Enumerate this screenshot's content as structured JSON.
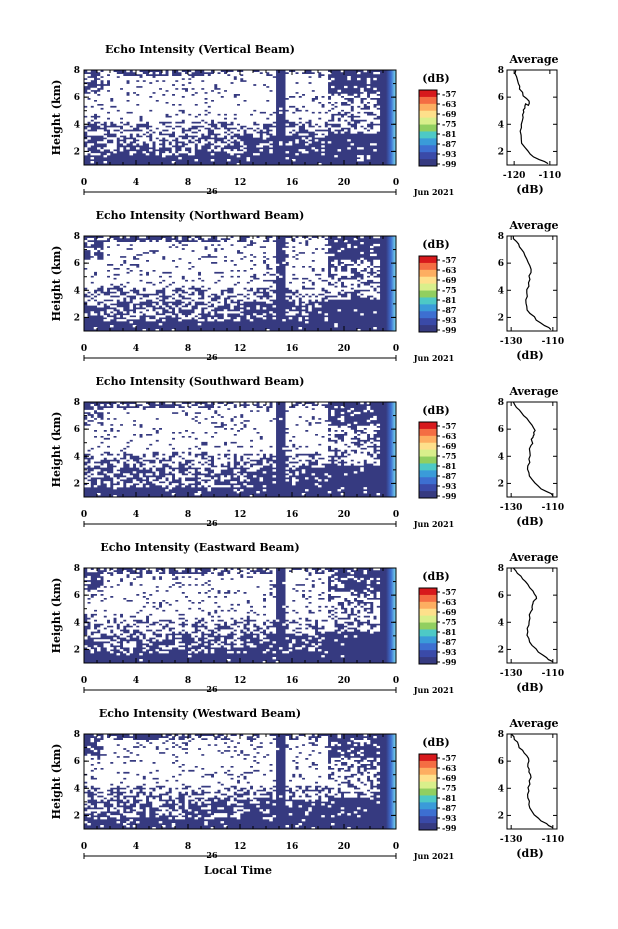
{
  "chart_data": [
    {
      "type": "heatmap",
      "title": "Echo Intensity (Vertical Beam)",
      "ylabel": "Height (km)",
      "xlabel": "",
      "x_ticks": [
        "0",
        "4",
        "8",
        "12",
        "16",
        "20",
        "0"
      ],
      "y_ticks": [
        "2",
        "4",
        "6",
        "8"
      ],
      "date_label": "26",
      "month_label": "Jun 2021",
      "xlim": [
        0,
        24
      ],
      "ylim": [
        1,
        8
      ],
      "colorbar": {
        "unit": "(dB)",
        "ticks": [
          "-57",
          "-63",
          "-69",
          "-75",
          "-81",
          "-87",
          "-93",
          "-99"
        ]
      },
      "profile": {
        "title": "Average",
        "xlabel": "(dB)",
        "x_ticks": [
          "-120",
          "-110"
        ],
        "xlim": [
          -122,
          -108
        ],
        "y_ticks": [
          "2",
          "4",
          "6",
          "8"
        ],
        "ylim": [
          1,
          8
        ],
        "x": [
          -110.5,
          -113,
          -115.5,
          -117,
          -118,
          -118.3,
          -118,
          -117.5,
          -117.3,
          -117,
          -116.8,
          -116,
          -115.8,
          -117.5,
          -118.5,
          -118.8,
          -119.3,
          -119.5
        ],
        "y": [
          1.1,
          1.4,
          1.8,
          2.3,
          2.9,
          3.5,
          4.0,
          4.5,
          4.9,
          5.2,
          5.5,
          5.4,
          5.7,
          6.1,
          6.6,
          7.0,
          7.5,
          8.0
        ]
      }
    },
    {
      "type": "heatmap",
      "title": "Echo Intensity (Northward Beam)",
      "ylabel": "Height (km)",
      "xlabel": "",
      "x_ticks": [
        "0",
        "4",
        "8",
        "12",
        "16",
        "20",
        "0"
      ],
      "y_ticks": [
        "2",
        "4",
        "6",
        "8"
      ],
      "date_label": "26",
      "month_label": "Jun 2021",
      "xlim": [
        0,
        24
      ],
      "ylim": [
        1,
        8
      ],
      "colorbar": {
        "unit": "(dB)",
        "ticks": [
          "-57",
          "-63",
          "-69",
          "-75",
          "-81",
          "-87",
          "-93",
          "-99"
        ]
      },
      "profile": {
        "title": "Average",
        "xlabel": "(dB)",
        "x_ticks": [
          "-130",
          "-110"
        ],
        "xlim": [
          -132,
          -108
        ],
        "y_ticks": [
          "2",
          "4",
          "6",
          "8"
        ],
        "ylim": [
          1,
          8
        ],
        "x": [
          -111,
          -114,
          -118,
          -121,
          -122.5,
          -123,
          -122.5,
          -121.5,
          -121,
          -120.5,
          -121,
          -122.5,
          -124,
          -126,
          -127.5,
          -129
        ],
        "y": [
          1.1,
          1.4,
          1.8,
          2.3,
          2.8,
          3.3,
          3.8,
          4.3,
          4.8,
          5.3,
          5.8,
          6.3,
          6.8,
          7.2,
          7.6,
          8.0
        ]
      }
    },
    {
      "type": "heatmap",
      "title": "Echo Intensity (Southward Beam)",
      "ylabel": "Height (km)",
      "xlabel": "",
      "x_ticks": [
        "0",
        "4",
        "8",
        "12",
        "16",
        "20",
        "0"
      ],
      "y_ticks": [
        "2",
        "4",
        "6",
        "8"
      ],
      "date_label": "26",
      "month_label": "Jun 2021",
      "xlim": [
        0,
        24
      ],
      "ylim": [
        1,
        8
      ],
      "colorbar": {
        "unit": "(dB)",
        "ticks": [
          "-57",
          "-63",
          "-69",
          "-75",
          "-81",
          "-87",
          "-93",
          "-99"
        ]
      },
      "profile": {
        "title": "Average",
        "xlabel": "(dB)",
        "x_ticks": [
          "-130",
          "-110"
        ],
        "xlim": [
          -132,
          -108
        ],
        "y_ticks": [
          "2",
          "4",
          "6",
          "8"
        ],
        "ylim": [
          1,
          8
        ],
        "x": [
          -110,
          -113,
          -117,
          -120,
          -121.5,
          -122,
          -121.5,
          -121,
          -120.5,
          -120,
          -119.5,
          -119,
          -118.5,
          -120,
          -122.5,
          -125,
          -127.5,
          -129
        ],
        "y": [
          1.1,
          1.4,
          1.8,
          2.3,
          2.8,
          3.3,
          3.8,
          4.3,
          4.8,
          5.1,
          5.4,
          5.6,
          5.9,
          6.3,
          6.8,
          7.2,
          7.6,
          8.0
        ]
      }
    },
    {
      "type": "heatmap",
      "title": "Echo Intensity (Eastward Beam)",
      "ylabel": "Height (km)",
      "xlabel": "",
      "x_ticks": [
        "0",
        "4",
        "8",
        "12",
        "16",
        "20",
        "0"
      ],
      "y_ticks": [
        "2",
        "4",
        "6",
        "8"
      ],
      "date_label": "26",
      "month_label": "Jun 2021",
      "xlim": [
        0,
        24
      ],
      "ylim": [
        1,
        8
      ],
      "colorbar": {
        "unit": "(dB)",
        "ticks": [
          "-57",
          "-63",
          "-69",
          "-75",
          "-81",
          "-87",
          "-93",
          "-99"
        ]
      },
      "profile": {
        "title": "Average",
        "xlabel": "(dB)",
        "x_ticks": [
          "-130",
          "-110"
        ],
        "xlim": [
          -132,
          -108
        ],
        "y_ticks": [
          "2",
          "4",
          "6",
          "8"
        ],
        "ylim": [
          1,
          8
        ],
        "x": [
          -110,
          -113,
          -117,
          -120,
          -121.5,
          -122,
          -121.5,
          -121,
          -120.5,
          -120,
          -119.5,
          -119,
          -118,
          -119.5,
          -122,
          -124.5,
          -127,
          -129
        ],
        "y": [
          1.1,
          1.4,
          1.8,
          2.3,
          2.8,
          3.3,
          3.8,
          4.3,
          4.8,
          5.1,
          5.4,
          5.6,
          5.9,
          6.3,
          6.8,
          7.2,
          7.6,
          8.0
        ]
      }
    },
    {
      "type": "heatmap",
      "title": "Echo Intensity (Westward Beam)",
      "ylabel": "Height (km)",
      "xlabel": "Local Time",
      "x_ticks": [
        "0",
        "4",
        "8",
        "12",
        "16",
        "20",
        "0"
      ],
      "y_ticks": [
        "2",
        "4",
        "6",
        "8"
      ],
      "date_label": "26",
      "month_label": "Jun 2021",
      "xlim": [
        0,
        24
      ],
      "ylim": [
        1,
        8
      ],
      "colorbar": {
        "unit": "(dB)",
        "ticks": [
          "-57",
          "-63",
          "-69",
          "-75",
          "-81",
          "-87",
          "-93",
          "-99"
        ]
      },
      "profile": {
        "title": "Average",
        "xlabel": "(dB)",
        "x_ticks": [
          "-130",
          "-110"
        ],
        "xlim": [
          -132,
          -108
        ],
        "y_ticks": [
          "2",
          "4",
          "6",
          "8"
        ],
        "ylim": [
          1,
          8
        ],
        "x": [
          -110,
          -113,
          -117,
          -120,
          -121.5,
          -122,
          -121.5,
          -121,
          -120.5,
          -121.5,
          -122,
          -121.5,
          -122.5,
          -124.5,
          -126.5,
          -128.5,
          -130
        ],
        "y": [
          1.1,
          1.4,
          1.8,
          2.3,
          2.8,
          3.3,
          3.8,
          4.3,
          4.8,
          5.2,
          5.6,
          6.0,
          6.4,
          6.8,
          7.2,
          7.6,
          8.0
        ]
      }
    }
  ]
}
